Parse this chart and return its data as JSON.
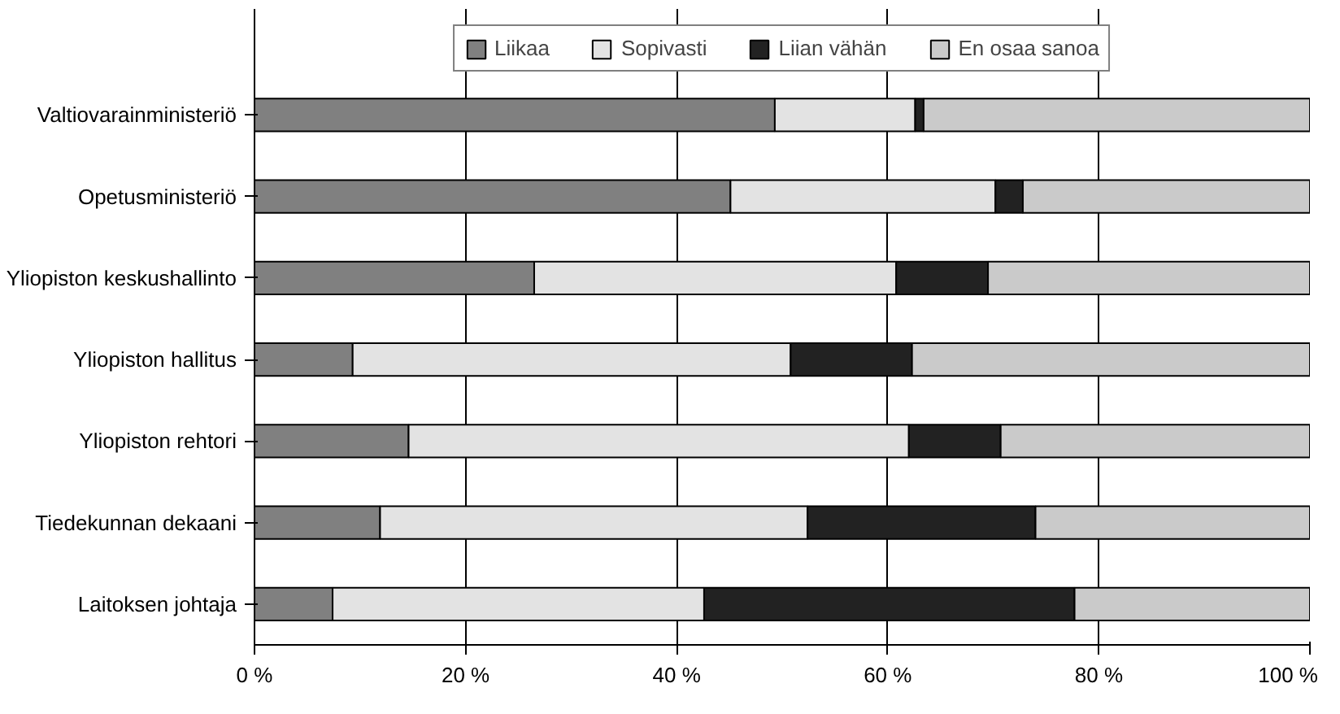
{
  "chart_data": {
    "type": "bar",
    "orientation": "horizontal",
    "stacked": true,
    "categories": [
      "Valtiovarainministeriö",
      "Opetusministeriö",
      "Yliopiston keskushallinto",
      "Yliopiston hallitus",
      "Yliopiston rehtori",
      "Tiedekunnan dekaani",
      "Laitoksen johtaja"
    ],
    "series": [
      {
        "name": "Liikaa",
        "color": "#808080",
        "values": [
          49.3,
          45.1,
          26.5,
          9.3,
          14.6,
          11.9,
          7.4
        ]
      },
      {
        "name": "Sopivasti",
        "color": "#e3e3e3",
        "values": [
          13.3,
          25.1,
          34.3,
          41.5,
          47.4,
          40.5,
          35.2
        ]
      },
      {
        "name": "Liian vähän",
        "color": "#222222",
        "values": [
          0.8,
          2.6,
          8.7,
          11.5,
          8.7,
          21.6,
          35.1
        ]
      },
      {
        "name": "En osaa sanoa",
        "color": "#cacaca",
        "values": [
          36.6,
          27.2,
          30.5,
          37.7,
          29.3,
          26.0,
          22.3
        ]
      }
    ],
    "xlim": [
      0,
      100
    ],
    "xticks": [
      {
        "value": 0,
        "label": "0 %"
      },
      {
        "value": 20,
        "label": "20 %"
      },
      {
        "value": 40,
        "label": "40 %"
      },
      {
        "value": 60,
        "label": "60 %"
      },
      {
        "value": 80,
        "label": "80 %"
      },
      {
        "value": 100,
        "label": "100 %"
      }
    ],
    "grid": "x",
    "legend": "top"
  }
}
